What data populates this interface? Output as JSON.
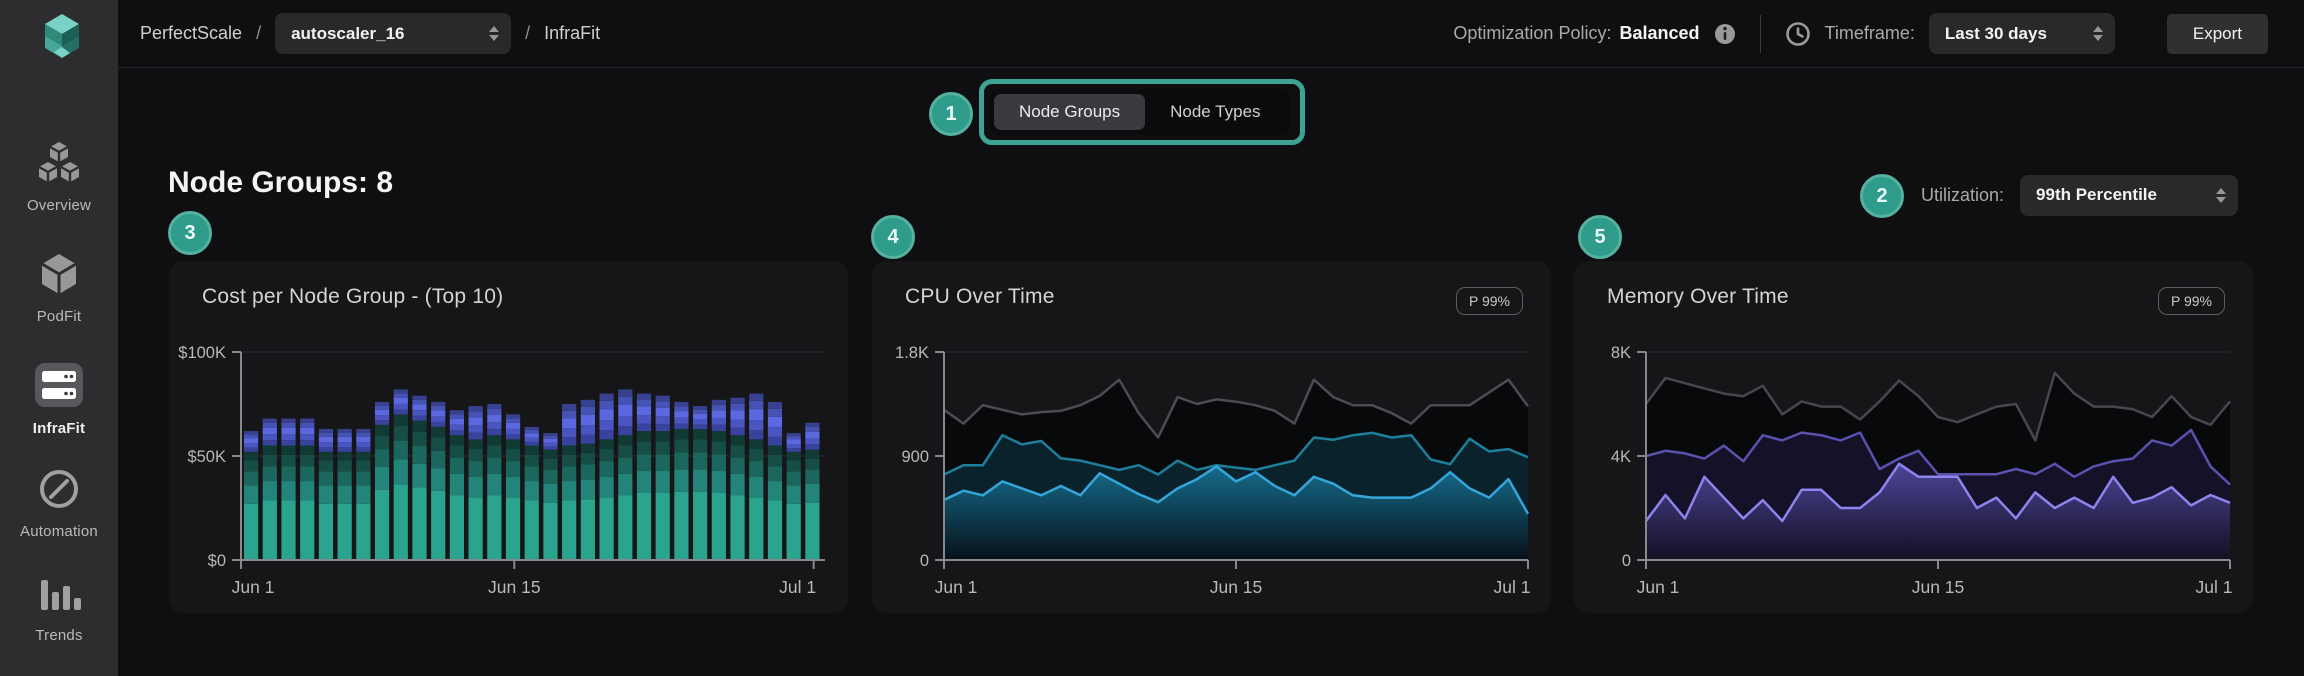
{
  "header": {
    "breadcrumb": {
      "app": "PerfectScale",
      "sep": "/",
      "cluster": "autoscaler_16",
      "page": "InfraFit"
    },
    "policy_label": "Optimization Policy:",
    "policy_value": "Balanced",
    "timeframe_label": "Timeframe:",
    "timeframe_value": "Last 30 days",
    "export_label": "Export"
  },
  "sidebar": {
    "items": [
      {
        "label": "Overview",
        "icon": "cubes-icon",
        "active": false
      },
      {
        "label": "PodFit",
        "icon": "cube-icon",
        "active": false
      },
      {
        "label": "InfraFit",
        "icon": "server-icon",
        "active": true
      },
      {
        "label": "Automation",
        "icon": "circle-slash-icon",
        "active": false
      },
      {
        "label": "Trends",
        "icon": "bar-chart-icon",
        "active": false
      }
    ]
  },
  "toggle": {
    "options": [
      "Node Groups",
      "Node Types"
    ],
    "selected": "Node Groups"
  },
  "page": {
    "heading": "Node Groups: 8",
    "utilization_label": "Utilization:",
    "utilization_value": "99th Percentile"
  },
  "annotations": {
    "badges": [
      "1",
      "2",
      "3",
      "4",
      "5"
    ]
  },
  "colors": {
    "accent_teal": "#2f9c8b",
    "annotation_ring": "#3da493",
    "bar_teal_bright": "#2aa38f",
    "bar_indigo_bright": "#5b68e0",
    "cpu_line_bright": "#35a6da",
    "memory_line_bright": "#8d84ec"
  },
  "chart_data": [
    {
      "type": "bar",
      "title": "Cost per Node Group - (Top 10)",
      "unit": "USD thousands per day",
      "days": 31,
      "ymax": 100,
      "y_ticks": [
        [
          0,
          "$0"
        ],
        [
          50,
          "$50K"
        ],
        [
          100,
          "$100K"
        ]
      ],
      "x_tick_labels": [
        "Jun 1",
        "Jun 15",
        "Jul 1"
      ],
      "series": [
        {
          "name": "teal_stack_total",
          "values": [
            52,
            55,
            55,
            55,
            52,
            52,
            52,
            65,
            70,
            67,
            64,
            60,
            58,
            60,
            58,
            55,
            53,
            55,
            56,
            58,
            60,
            62,
            62,
            63,
            63,
            62,
            60,
            58,
            55,
            52,
            53
          ],
          "band_colors": [
            "#2aa38f",
            "#23857a",
            "#1c675d",
            "#164e46",
            "#113a35"
          ],
          "band_fractions": [
            0.52,
            0.17,
            0.13,
            0.1,
            0.08
          ]
        },
        {
          "name": "indigo_stack_total",
          "values": [
            10,
            13,
            13,
            13,
            11,
            11,
            11,
            11,
            12,
            12,
            12,
            12,
            16,
            15,
            12,
            9,
            8,
            20,
            21,
            22,
            22,
            18,
            17,
            13,
            11,
            15,
            18,
            22,
            21,
            9,
            13
          ],
          "band_colors": [
            "#39439e",
            "#4a55c2",
            "#5b68e0",
            "#4753b4",
            "#38418f"
          ],
          "band_fractions": [
            0.2,
            0.22,
            0.24,
            0.18,
            0.16
          ]
        }
      ]
    },
    {
      "type": "area",
      "title": "CPU Over Time",
      "badge": "P 99%",
      "days": 31,
      "ymax": 1800,
      "y_ticks": [
        [
          0,
          "0"
        ],
        [
          900,
          "900"
        ],
        [
          1800,
          "1.8K"
        ]
      ],
      "x_tick_labels": [
        "Jun 1",
        "Jun 15",
        "Jul 1"
      ],
      "series": [
        {
          "name": "series_top",
          "values": [
            1300,
            1180,
            1340,
            1300,
            1260,
            1280,
            1290,
            1340,
            1420,
            1560,
            1270,
            1060,
            1410,
            1350,
            1390,
            1370,
            1340,
            1290,
            1180,
            1560,
            1410,
            1340,
            1340,
            1270,
            1180,
            1340,
            1340,
            1340,
            1450,
            1560,
            1330
          ],
          "line": "#4b4d52",
          "fill": "#08090b"
        },
        {
          "name": "series_mid",
          "values": [
            740,
            820,
            820,
            1080,
            1000,
            1030,
            880,
            860,
            820,
            780,
            820,
            740,
            860,
            780,
            820,
            800,
            780,
            820,
            860,
            1060,
            1040,
            1080,
            1100,
            1060,
            1080,
            870,
            830,
            1050,
            940,
            960,
            890
          ],
          "line": "#1e7f9c",
          "fill": "#09222c"
        },
        {
          "name": "series_bottom",
          "values": [
            520,
            600,
            560,
            680,
            620,
            560,
            640,
            560,
            750,
            660,
            570,
            500,
            620,
            700,
            810,
            680,
            760,
            640,
            560,
            720,
            660,
            560,
            540,
            540,
            540,
            620,
            760,
            620,
            540,
            700,
            400
          ],
          "line": "#35a6da",
          "fill": [
            "#156c8c",
            "#071119"
          ]
        }
      ]
    },
    {
      "type": "area",
      "title": "Memory Over Time",
      "badge": "P 99%",
      "days": 31,
      "ymax": 8000,
      "y_ticks": [
        [
          0,
          "0"
        ],
        [
          4000,
          "4K"
        ],
        [
          8000,
          "8K"
        ]
      ],
      "x_tick_labels": [
        "Jun 1",
        "Jun 15",
        "Jul 1"
      ],
      "series": [
        {
          "name": "series_top",
          "values": [
            6000,
            7000,
            6800,
            6600,
            6400,
            6300,
            6700,
            5600,
            6100,
            5900,
            5900,
            5400,
            6100,
            6900,
            6300,
            5500,
            5300,
            5600,
            5900,
            6000,
            4600,
            7200,
            6400,
            5900,
            5900,
            5800,
            5500,
            6300,
            5500,
            5200,
            6100
          ],
          "line": "#47474e",
          "fill": "#08090b"
        },
        {
          "name": "series_mid",
          "values": [
            4000,
            4200,
            4100,
            3900,
            4400,
            3800,
            4800,
            4600,
            4900,
            4800,
            4600,
            4900,
            3500,
            3900,
            4200,
            3300,
            3300,
            3300,
            3300,
            3500,
            3300,
            3700,
            3200,
            3600,
            3800,
            3900,
            4600,
            4400,
            5000,
            3600,
            2900
          ],
          "line": "#5b51ae",
          "fill": "#151129"
        },
        {
          "name": "series_bottom",
          "values": [
            1500,
            2500,
            1600,
            3200,
            2400,
            1600,
            2300,
            1500,
            2700,
            2700,
            2000,
            2000,
            2600,
            3700,
            3200,
            3200,
            3200,
            2000,
            2400,
            1600,
            2600,
            2000,
            2400,
            2000,
            3200,
            2200,
            2400,
            2800,
            2100,
            2500,
            2200
          ],
          "line": "#8d84ec",
          "fill": [
            "#4c4598",
            "#140f22"
          ]
        }
      ]
    }
  ]
}
